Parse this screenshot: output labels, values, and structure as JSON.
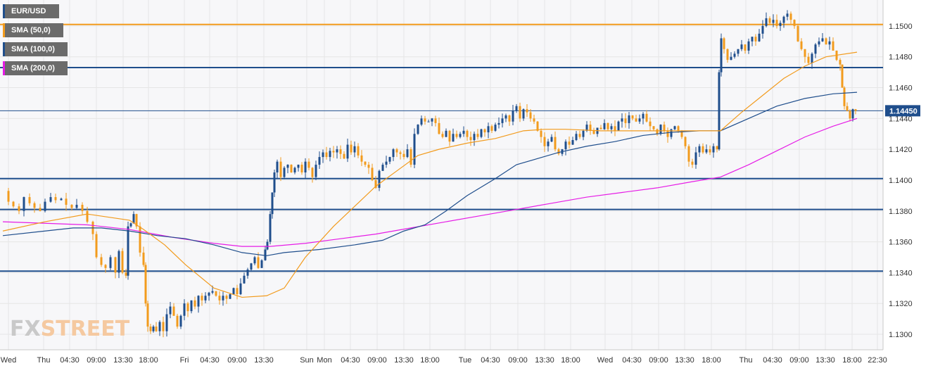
{
  "chart_data": {
    "type": "candlestick",
    "symbol": "EUR/USD",
    "ylim": [
      1.129,
      1.1515
    ],
    "y_ticks": [
      "1.1300",
      "1.1320",
      "1.1340",
      "1.1360",
      "1.1380",
      "1.1400",
      "1.1420",
      "1.1440",
      "1.1460",
      "1.1480",
      "1.1500"
    ],
    "x_ticks": [
      "Wed",
      "Thu",
      "04:30",
      "09:00",
      "13:30",
      "18:00",
      "Fri",
      "04:30",
      "09:00",
      "13:30",
      "Sun",
      "Mon",
      "04:30",
      "09:00",
      "13:30",
      "18:00",
      "Tue",
      "04:30",
      "09:00",
      "13:30",
      "18:00",
      "Wed",
      "04:30",
      "09:00",
      "13:30",
      "18:00",
      "Thu",
      "04:30",
      "09:00",
      "13:30",
      "18:00",
      "22:30"
    ],
    "last_price": "1.14450",
    "horizontal_levels": [
      {
        "value": 1.1501,
        "color": "#f29b1d"
      },
      {
        "value": 1.1473,
        "color": "#1f4e8c"
      },
      {
        "value": 1.1445,
        "color": "#1f4e8c"
      },
      {
        "value": 1.1401,
        "color": "#1f4e8c"
      },
      {
        "value": 1.1381,
        "color": "#1f4e8c"
      },
      {
        "value": 1.1341,
        "color": "#1f4e8c"
      }
    ],
    "series": [
      {
        "name": "SMA (50,0)",
        "color": "#f29b1d"
      },
      {
        "name": "SMA (100,0)",
        "color": "#1f4e8c"
      },
      {
        "name": "SMA (200,0)",
        "color": "#e61ce6"
      }
    ],
    "price_path": [
      [
        0,
        1.1393
      ],
      [
        8,
        1.1386
      ],
      [
        15,
        1.1383
      ],
      [
        23,
        1.138
      ],
      [
        30,
        1.1389
      ],
      [
        38,
        1.1385
      ],
      [
        45,
        1.1382
      ],
      [
        53,
        1.138
      ],
      [
        60,
        1.1386
      ],
      [
        68,
        1.1389
      ],
      [
        75,
        1.1387
      ],
      [
        83,
        1.1388
      ],
      [
        90,
        1.1384
      ],
      [
        98,
        1.1382
      ],
      [
        105,
        1.1384
      ],
      [
        113,
        1.138
      ],
      [
        120,
        1.1373
      ],
      [
        128,
        1.1365
      ],
      [
        133,
        1.135
      ],
      [
        140,
        1.1345
      ],
      [
        146,
        1.1343
      ],
      [
        153,
        1.135
      ],
      [
        160,
        1.134
      ],
      [
        165,
        1.1354
      ],
      [
        170,
        1.134
      ],
      [
        175,
        1.1338
      ],
      [
        178,
        1.137
      ],
      [
        182,
        1.1372
      ],
      [
        186,
        1.1378
      ],
      [
        190,
        1.137
      ],
      [
        195,
        1.1353
      ],
      [
        200,
        1.1345
      ],
      [
        203,
        1.132
      ],
      [
        206,
        1.1305
      ],
      [
        210,
        1.1302
      ],
      [
        214,
        1.1305
      ],
      [
        218,
        1.1302
      ],
      [
        223,
        1.1308
      ],
      [
        228,
        1.1302
      ],
      [
        233,
        1.1313
      ],
      [
        238,
        1.1318
      ],
      [
        243,
        1.1312
      ],
      [
        248,
        1.1305
      ],
      [
        253,
        1.1312
      ],
      [
        258,
        1.132
      ],
      [
        263,
        1.1315
      ],
      [
        268,
        1.1322
      ],
      [
        273,
        1.1318
      ],
      [
        278,
        1.1325
      ],
      [
        283,
        1.1322
      ],
      [
        288,
        1.1325
      ],
      [
        293,
        1.1327
      ],
      [
        298,
        1.1328
      ],
      [
        303,
        1.1325
      ],
      [
        308,
        1.1322
      ],
      [
        313,
        1.1325
      ],
      [
        318,
        1.1323
      ],
      [
        323,
        1.1326
      ],
      [
        328,
        1.133
      ],
      [
        333,
        1.1326
      ],
      [
        338,
        1.1333
      ],
      [
        343,
        1.1338
      ],
      [
        348,
        1.1342
      ],
      [
        353,
        1.1346
      ],
      [
        358,
        1.135
      ],
      [
        363,
        1.1343
      ],
      [
        368,
        1.1348
      ],
      [
        373,
        1.1355
      ],
      [
        376,
        1.136
      ],
      [
        380,
        1.1378
      ],
      [
        383,
        1.1392
      ],
      [
        386,
        1.1405
      ],
      [
        390,
        1.1412
      ],
      [
        395,
        1.1402
      ],
      [
        400,
        1.1408
      ],
      [
        405,
        1.141
      ],
      [
        410,
        1.1405
      ],
      [
        415,
        1.1408
      ],
      [
        420,
        1.141
      ],
      [
        425,
        1.1405
      ],
      [
        430,
        1.1412
      ],
      [
        435,
        1.1408
      ],
      [
        440,
        1.1402
      ],
      [
        445,
        1.141
      ],
      [
        450,
        1.1415
      ],
      [
        455,
        1.1418
      ],
      [
        460,
        1.1415
      ],
      [
        465,
        1.1419
      ],
      [
        470,
        1.1418
      ],
      [
        475,
        1.142
      ],
      [
        480,
        1.1417
      ],
      [
        485,
        1.1414
      ],
      [
        490,
        1.1423
      ],
      [
        495,
        1.1418
      ],
      [
        500,
        1.1422
      ],
      [
        505,
        1.1416
      ],
      [
        510,
        1.1412
      ],
      [
        515,
        1.141
      ],
      [
        520,
        1.1408
      ],
      [
        525,
        1.14
      ],
      [
        530,
        1.1395
      ],
      [
        535,
        1.1406
      ],
      [
        540,
        1.141
      ],
      [
        545,
        1.1412
      ],
      [
        550,
        1.1415
      ],
      [
        555,
        1.142
      ],
      [
        560,
        1.1418
      ],
      [
        565,
        1.1417
      ],
      [
        570,
        1.1415
      ],
      [
        575,
        1.142
      ],
      [
        580,
        1.141
      ],
      [
        585,
        1.143
      ],
      [
        590,
        1.1436
      ],
      [
        595,
        1.144
      ],
      [
        600,
        1.1438
      ],
      [
        605,
        1.1438
      ],
      [
        610,
        1.144
      ],
      [
        615,
        1.1437
      ],
      [
        620,
        1.143
      ],
      [
        625,
        1.1428
      ],
      [
        630,
        1.1432
      ],
      [
        635,
        1.1425
      ],
      [
        640,
        1.143
      ],
      [
        645,
        1.1428
      ],
      [
        650,
        1.143
      ],
      [
        655,
        1.1432
      ],
      [
        660,
        1.1428
      ],
      [
        665,
        1.1426
      ],
      [
        670,
        1.143
      ],
      [
        675,
        1.1428
      ],
      [
        680,
        1.1433
      ],
      [
        685,
        1.1431
      ],
      [
        690,
        1.1435
      ],
      [
        695,
        1.1432
      ],
      [
        700,
        1.1436
      ],
      [
        705,
        1.1437
      ],
      [
        710,
        1.144
      ],
      [
        715,
        1.1442
      ],
      [
        720,
        1.1438
      ],
      [
        725,
        1.1445
      ],
      [
        730,
        1.1448
      ],
      [
        735,
        1.144
      ],
      [
        740,
        1.1446
      ],
      [
        745,
        1.1444
      ],
      [
        750,
        1.144
      ],
      [
        755,
        1.1438
      ],
      [
        760,
        1.1432
      ],
      [
        765,
        1.1428
      ],
      [
        770,
        1.1422
      ],
      [
        775,
        1.1425
      ],
      [
        780,
        1.1428
      ],
      [
        785,
        1.142
      ],
      [
        790,
        1.1417
      ],
      [
        795,
        1.142
      ],
      [
        800,
        1.1425
      ],
      [
        805,
        1.1423
      ],
      [
        810,
        1.1426
      ],
      [
        815,
        1.143
      ],
      [
        820,
        1.1428
      ],
      [
        825,
        1.1432
      ],
      [
        830,
        1.1436
      ],
      [
        835,
        1.1432
      ],
      [
        840,
        1.143
      ],
      [
        845,
        1.1434
      ],
      [
        850,
        1.1433
      ],
      [
        855,
        1.1437
      ],
      [
        860,
        1.1433
      ],
      [
        865,
        1.1435
      ],
      [
        870,
        1.1432
      ],
      [
        875,
        1.1438
      ],
      [
        880,
        1.144
      ],
      [
        885,
        1.1437
      ],
      [
        890,
        1.1442
      ],
      [
        895,
        1.144
      ],
      [
        900,
        1.1438
      ],
      [
        905,
        1.144
      ],
      [
        910,
        1.1443
      ],
      [
        915,
        1.1438
      ],
      [
        920,
        1.1435
      ],
      [
        925,
        1.1433
      ],
      [
        930,
        1.143
      ],
      [
        935,
        1.1436
      ],
      [
        940,
        1.1432
      ],
      [
        945,
        1.1428
      ],
      [
        950,
        1.1433
      ],
      [
        955,
        1.1435
      ],
      [
        960,
        1.1432
      ],
      [
        965,
        1.1428
      ],
      [
        970,
        1.1422
      ],
      [
        975,
        1.1412
      ],
      [
        980,
        1.141
      ],
      [
        985,
        1.1418
      ],
      [
        990,
        1.1422
      ],
      [
        995,
        1.1418
      ],
      [
        1000,
        1.142
      ],
      [
        1005,
        1.1418
      ],
      [
        1010,
        1.1422
      ],
      [
        1015,
        1.142
      ],
      [
        1018,
        1.147
      ],
      [
        1021,
        1.1492
      ],
      [
        1025,
        1.1485
      ],
      [
        1030,
        1.1478
      ],
      [
        1035,
        1.148
      ],
      [
        1040,
        1.1482
      ],
      [
        1045,
        1.1485
      ],
      [
        1050,
        1.1488
      ],
      [
        1055,
        1.1484
      ],
      [
        1060,
        1.149
      ],
      [
        1065,
        1.1493
      ],
      [
        1070,
        1.149
      ],
      [
        1075,
        1.1495
      ],
      [
        1080,
        1.15
      ],
      [
        1085,
        1.1505
      ],
      [
        1090,
        1.1502
      ],
      [
        1095,
        1.1504
      ],
      [
        1100,
        1.15
      ],
      [
        1105,
        1.1502
      ],
      [
        1110,
        1.1506
      ],
      [
        1115,
        1.1508
      ],
      [
        1120,
        1.1504
      ],
      [
        1125,
        1.15
      ],
      [
        1130,
        1.149
      ],
      [
        1135,
        1.1485
      ],
      [
        1140,
        1.148
      ],
      [
        1145,
        1.1476
      ],
      [
        1150,
        1.1482
      ],
      [
        1155,
        1.1488
      ],
      [
        1160,
        1.149
      ],
      [
        1165,
        1.1492
      ],
      [
        1170,
        1.1488
      ],
      [
        1175,
        1.149
      ],
      [
        1180,
        1.1484
      ],
      [
        1185,
        1.1478
      ],
      [
        1190,
        1.1475
      ],
      [
        1193,
        1.146
      ],
      [
        1196,
        1.1448
      ],
      [
        1200,
        1.1445
      ],
      [
        1204,
        1.144
      ],
      [
        1208,
        1.1446
      ],
      [
        1212,
        1.1445
      ]
    ],
    "sma50": [
      [
        0,
        1.1367
      ],
      [
        60,
        1.1373
      ],
      [
        120,
        1.1378
      ],
      [
        180,
        1.1374
      ],
      [
        200,
        1.1368
      ],
      [
        230,
        1.1358
      ],
      [
        260,
        1.1345
      ],
      [
        300,
        1.133
      ],
      [
        340,
        1.1324
      ],
      [
        375,
        1.1325
      ],
      [
        400,
        1.133
      ],
      [
        430,
        1.135
      ],
      [
        470,
        1.137
      ],
      [
        500,
        1.1383
      ],
      [
        530,
        1.1396
      ],
      [
        560,
        1.1406
      ],
      [
        590,
        1.1416
      ],
      [
        620,
        1.142
      ],
      [
        660,
        1.1424
      ],
      [
        700,
        1.1427
      ],
      [
        740,
        1.1432
      ],
      [
        770,
        1.1433
      ],
      [
        800,
        1.1433
      ],
      [
        850,
        1.1432
      ],
      [
        900,
        1.1432
      ],
      [
        950,
        1.1432
      ],
      [
        1000,
        1.1432
      ],
      [
        1020,
        1.1432
      ],
      [
        1050,
        1.1444
      ],
      [
        1080,
        1.1455
      ],
      [
        1110,
        1.1466
      ],
      [
        1140,
        1.1474
      ],
      [
        1170,
        1.148
      ],
      [
        1214,
        1.1483
      ]
    ],
    "sma100": [
      [
        0,
        1.1364
      ],
      [
        60,
        1.1367
      ],
      [
        100,
        1.1369
      ],
      [
        140,
        1.1369
      ],
      [
        180,
        1.1367
      ],
      [
        220,
        1.1364
      ],
      [
        260,
        1.1362
      ],
      [
        300,
        1.1358
      ],
      [
        340,
        1.1353
      ],
      [
        375,
        1.1351
      ],
      [
        400,
        1.1353
      ],
      [
        450,
        1.1355
      ],
      [
        500,
        1.1358
      ],
      [
        540,
        1.1361
      ],
      [
        570,
        1.1367
      ],
      [
        600,
        1.1371
      ],
      [
        630,
        1.138
      ],
      [
        660,
        1.139
      ],
      [
        700,
        1.1401
      ],
      [
        730,
        1.141
      ],
      [
        760,
        1.1414
      ],
      [
        790,
        1.1418
      ],
      [
        830,
        1.1422
      ],
      [
        870,
        1.1425
      ],
      [
        910,
        1.1429
      ],
      [
        950,
        1.1431
      ],
      [
        990,
        1.1432
      ],
      [
        1020,
        1.1432
      ],
      [
        1060,
        1.144
      ],
      [
        1100,
        1.1448
      ],
      [
        1140,
        1.1453
      ],
      [
        1180,
        1.1456
      ],
      [
        1214,
        1.1457
      ]
    ],
    "sma200": [
      [
        0,
        1.1373
      ],
      [
        60,
        1.1372
      ],
      [
        120,
        1.1371
      ],
      [
        180,
        1.1368
      ],
      [
        240,
        1.1363
      ],
      [
        300,
        1.1359
      ],
      [
        340,
        1.1357
      ],
      [
        380,
        1.1357
      ],
      [
        430,
        1.1359
      ],
      [
        480,
        1.1362
      ],
      [
        530,
        1.1365
      ],
      [
        580,
        1.1369
      ],
      [
        630,
        1.1373
      ],
      [
        680,
        1.1377
      ],
      [
        730,
        1.1381
      ],
      [
        780,
        1.1385
      ],
      [
        830,
        1.1389
      ],
      [
        880,
        1.1392
      ],
      [
        930,
        1.1395
      ],
      [
        980,
        1.1399
      ],
      [
        1020,
        1.1402
      ],
      [
        1060,
        1.141
      ],
      [
        1100,
        1.1419
      ],
      [
        1140,
        1.1428
      ],
      [
        1180,
        1.1435
      ],
      [
        1214,
        1.144
      ]
    ]
  },
  "legend": {
    "symbol": "EUR/USD",
    "sma50": "SMA (50,0)",
    "sma100": "SMA (100,0)",
    "sma200": "SMA (200,0)"
  },
  "watermark": {
    "fx": "FX",
    "street": "STREET"
  },
  "colors": {
    "bull": "#1f4e8c",
    "bear": "#f29b1d",
    "grid": "#e6e6e6",
    "price_tag_bg": "#1f4e8c"
  }
}
